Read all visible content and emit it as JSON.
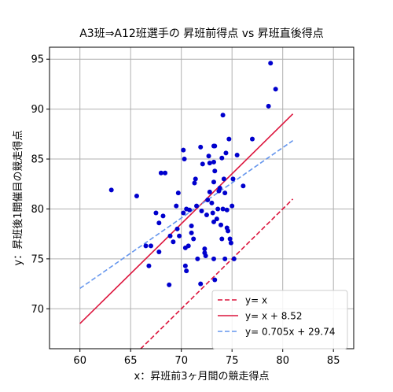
{
  "chart_data": {
    "type": "scatter",
    "title": "A3班⇒A12班選手の 昇班前得点 vs 昇班直後得点",
    "xlabel": "x：昇班前3ヶ月間の競走得点",
    "ylabel": "y：昇班後1開催目の競走得点",
    "xlim": [
      57.0,
      87.0
    ],
    "ylim": [
      66.0,
      96.2
    ],
    "xticks": [
      60,
      65,
      70,
      75,
      80,
      85
    ],
    "yticks": [
      70,
      75,
      80,
      85,
      90,
      95
    ],
    "grid": true,
    "legend_position": "lower-right",
    "points": [
      [
        63.1,
        81.9
      ],
      [
        65.6,
        81.3
      ],
      [
        66.5,
        76.3
      ],
      [
        66.8,
        74.3
      ],
      [
        67.0,
        76.3
      ],
      [
        67.5,
        79.6
      ],
      [
        67.8,
        75.7
      ],
      [
        67.8,
        78.6
      ],
      [
        68.0,
        83.6
      ],
      [
        68.2,
        79.3
      ],
      [
        68.4,
        83.6
      ],
      [
        68.8,
        72.4
      ],
      [
        68.9,
        77.3
      ],
      [
        69.2,
        76.7
      ],
      [
        69.5,
        80.3
      ],
      [
        69.6,
        78.0
      ],
      [
        69.8,
        77.3
      ],
      [
        69.7,
        81.6
      ],
      [
        70.2,
        85.9
      ],
      [
        70.3,
        85.0
      ],
      [
        70.2,
        79.6
      ],
      [
        70.4,
        76.1
      ],
      [
        70.5,
        80.0
      ],
      [
        70.4,
        74.3
      ],
      [
        70.5,
        73.8
      ],
      [
        70.7,
        76.3
      ],
      [
        70.8,
        79.9
      ],
      [
        71.0,
        77.6
      ],
      [
        71.0,
        78.3
      ],
      [
        71.2,
        77.0
      ],
      [
        71.3,
        82.6
      ],
      [
        71.4,
        83.0
      ],
      [
        71.5,
        80.3
      ],
      [
        71.6,
        75.0
      ],
      [
        71.9,
        86.2
      ],
      [
        71.9,
        72.5
      ],
      [
        72.0,
        79.8
      ],
      [
        72.1,
        84.5
      ],
      [
        72.3,
        76.0
      ],
      [
        72.3,
        75.6
      ],
      [
        72.4,
        75.3
      ],
      [
        72.5,
        79.4
      ],
      [
        72.6,
        80.9
      ],
      [
        72.7,
        85.3
      ],
      [
        72.8,
        81.7
      ],
      [
        72.8,
        84.6
      ],
      [
        73.0,
        80.6
      ],
      [
        73.1,
        79.6
      ],
      [
        73.2,
        82.7
      ],
      [
        73.2,
        86.3
      ],
      [
        73.2,
        84.7
      ],
      [
        73.3,
        83.8
      ],
      [
        73.2,
        78.7
      ],
      [
        73.2,
        75.0
      ],
      [
        73.3,
        72.9
      ],
      [
        73.3,
        86.3
      ],
      [
        73.5,
        79.0
      ],
      [
        73.6,
        80.0
      ],
      [
        73.7,
        81.8
      ],
      [
        73.8,
        82.1
      ],
      [
        73.9,
        78.4
      ],
      [
        74.0,
        77.0
      ],
      [
        74.0,
        85.1
      ],
      [
        74.1,
        80.0
      ],
      [
        74.1,
        89.4
      ],
      [
        74.2,
        83.0
      ],
      [
        74.3,
        81.6
      ],
      [
        74.3,
        75.0
      ],
      [
        74.4,
        85.6
      ],
      [
        74.5,
        78.1
      ],
      [
        74.5,
        79.9
      ],
      [
        74.6,
        77.8
      ],
      [
        74.7,
        87.0
      ],
      [
        74.8,
        77.0
      ],
      [
        74.9,
        76.6
      ],
      [
        75.0,
        80.3
      ],
      [
        75.1,
        83.0
      ],
      [
        75.2,
        75.0
      ],
      [
        75.5,
        85.4
      ],
      [
        76.1,
        82.3
      ],
      [
        77.0,
        87.0
      ],
      [
        78.6,
        90.3
      ],
      [
        78.8,
        94.6
      ],
      [
        79.3,
        92.0
      ]
    ],
    "series": [
      {
        "name": "y= x",
        "kind": "line",
        "slope": 1.0,
        "intercept": 0.0,
        "x_range": [
          60.0,
          81.0
        ],
        "color": "#dc143c",
        "dash": "dashed"
      },
      {
        "name": "y= x + 8.52",
        "kind": "line",
        "slope": 1.0,
        "intercept": 8.52,
        "x_range": [
          60.0,
          81.0
        ],
        "color": "#dc143c",
        "dash": "solid"
      },
      {
        "name": "y= 0.705x + 29.74",
        "kind": "line",
        "slope": 0.705,
        "intercept": 29.74,
        "x_range": [
          60.0,
          81.0
        ],
        "color": "#6495ed",
        "dash": "dashed"
      }
    ],
    "point_color": "#0000cd"
  }
}
